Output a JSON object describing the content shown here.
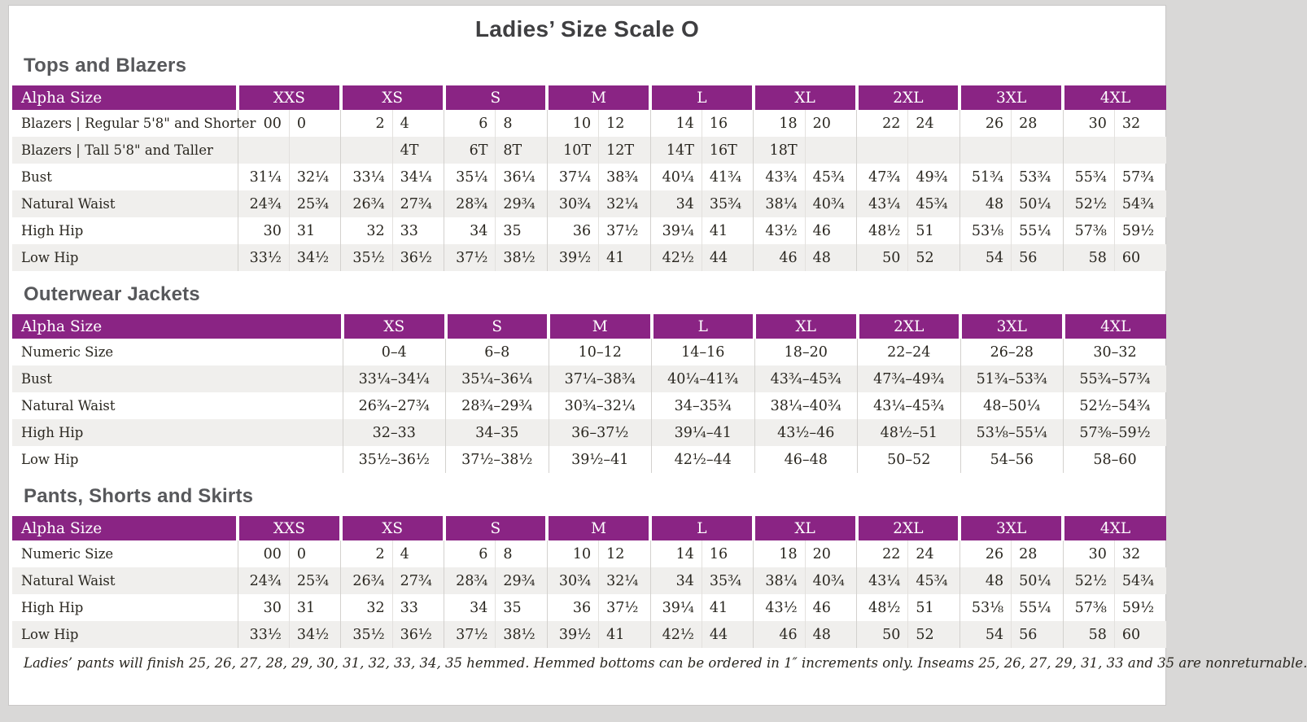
{
  "title": "Ladies’ Size Scale O",
  "colors": {
    "header_purple": "#8A2484",
    "alt_row_gray": "#F0EFED",
    "heading_gray": "#57585B",
    "title_gray": "#3F3F41"
  },
  "tables": [
    {
      "section": "Tops and Blazers",
      "type": "paired",
      "label_header": "Alpha Size",
      "sizes": [
        "XXS",
        "XS",
        "S",
        "M",
        "L",
        "XL",
        "2XL",
        "3XL",
        "4XL"
      ],
      "rows": [
        {
          "label": "Blazers  |  Regular 5'8\" and Shorter",
          "pairs": [
            [
              "00",
              "0"
            ],
            [
              "2",
              "4"
            ],
            [
              "6",
              "8"
            ],
            [
              "10",
              "12"
            ],
            [
              "14",
              "16"
            ],
            [
              "18",
              "20"
            ],
            [
              "22",
              "24"
            ],
            [
              "26",
              "28"
            ],
            [
              "30",
              "32"
            ]
          ]
        },
        {
          "label": "Blazers  |  Tall 5'8\" and Taller",
          "pairs": [
            [
              "",
              ""
            ],
            [
              "",
              "4T"
            ],
            [
              "6T",
              "8T"
            ],
            [
              "10T",
              "12T"
            ],
            [
              "14T",
              "16T"
            ],
            [
              "18T",
              ""
            ],
            [
              "",
              ""
            ],
            [
              "",
              ""
            ],
            [
              "",
              ""
            ]
          ]
        },
        {
          "label": "Bust",
          "pairs": [
            [
              "31¼",
              "32¼"
            ],
            [
              "33¼",
              "34¼"
            ],
            [
              "35¼",
              "36¼"
            ],
            [
              "37¼",
              "38¾"
            ],
            [
              "40¼",
              "41¾"
            ],
            [
              "43¾",
              "45¾"
            ],
            [
              "47¾",
              "49¾"
            ],
            [
              "51¾",
              "53¾"
            ],
            [
              "55¾",
              "57¾"
            ]
          ]
        },
        {
          "label": "Natural Waist",
          "pairs": [
            [
              "24¾",
              "25¾"
            ],
            [
              "26¾",
              "27¾"
            ],
            [
              "28¾",
              "29¾"
            ],
            [
              "30¾",
              "32¼"
            ],
            [
              "34",
              "35¾"
            ],
            [
              "38¼",
              "40¾"
            ],
            [
              "43¼",
              "45¾"
            ],
            [
              "48",
              "50¼"
            ],
            [
              "52½",
              "54¾"
            ]
          ]
        },
        {
          "label": "High Hip",
          "pairs": [
            [
              "30",
              "31"
            ],
            [
              "32",
              "33"
            ],
            [
              "34",
              "35"
            ],
            [
              "36",
              "37½"
            ],
            [
              "39¼",
              "41"
            ],
            [
              "43½",
              "46"
            ],
            [
              "48½",
              "51"
            ],
            [
              "53⅛",
              "55¼"
            ],
            [
              "57⅜",
              "59½"
            ]
          ]
        },
        {
          "label": "Low Hip",
          "pairs": [
            [
              "33½",
              "34½"
            ],
            [
              "35½",
              "36½"
            ],
            [
              "37½",
              "38½"
            ],
            [
              "39½",
              "41"
            ],
            [
              "42½",
              "44"
            ],
            [
              "46",
              "48"
            ],
            [
              "50",
              "52"
            ],
            [
              "54",
              "56"
            ],
            [
              "58",
              "60"
            ]
          ]
        }
      ]
    },
    {
      "section": "Outerwear Jackets",
      "type": "range",
      "label_header": "Alpha Size",
      "sizes": [
        "XS",
        "S",
        "M",
        "L",
        "XL",
        "2XL",
        "3XL",
        "4XL"
      ],
      "rows": [
        {
          "label": "Numeric Size",
          "values": [
            "0–4",
            "6–8",
            "10–12",
            "14–16",
            "18–20",
            "22–24",
            "26–28",
            "30–32"
          ]
        },
        {
          "label": "Bust",
          "values": [
            "33¼–34¼",
            "35¼–36¼",
            "37¼–38¾",
            "40¼–41¾",
            "43¾–45¾",
            "47¾–49¾",
            "51¾–53¾",
            "55¾–57¾"
          ]
        },
        {
          "label": "Natural Waist",
          "values": [
            "26¾–27¾",
            "28¾–29¾",
            "30¾–32¼",
            "34–35¾",
            "38¼–40¾",
            "43¼–45¾",
            "48–50¼",
            "52½–54¾"
          ]
        },
        {
          "label": "High Hip",
          "values": [
            "32–33",
            "34–35",
            "36–37½",
            "39¼–41",
            "43½–46",
            "48½–51",
            "53⅛–55¼",
            "57⅜–59½"
          ]
        },
        {
          "label": "Low Hip",
          "values": [
            "35½–36½",
            "37½–38½",
            "39½–41",
            "42½–44",
            "46–48",
            "50–52",
            "54–56",
            "58–60"
          ]
        }
      ]
    },
    {
      "section": "Pants, Shorts and Skirts",
      "type": "paired",
      "label_header": "Alpha Size",
      "sizes": [
        "XXS",
        "XS",
        "S",
        "M",
        "L",
        "XL",
        "2XL",
        "3XL",
        "4XL"
      ],
      "rows": [
        {
          "label": "Numeric Size",
          "pairs": [
            [
              "00",
              "0"
            ],
            [
              "2",
              "4"
            ],
            [
              "6",
              "8"
            ],
            [
              "10",
              "12"
            ],
            [
              "14",
              "16"
            ],
            [
              "18",
              "20"
            ],
            [
              "22",
              "24"
            ],
            [
              "26",
              "28"
            ],
            [
              "30",
              "32"
            ]
          ]
        },
        {
          "label": "Natural Waist",
          "pairs": [
            [
              "24¾",
              "25¾"
            ],
            [
              "26¾",
              "27¾"
            ],
            [
              "28¾",
              "29¾"
            ],
            [
              "30¾",
              "32¼"
            ],
            [
              "34",
              "35¾"
            ],
            [
              "38¼",
              "40¾"
            ],
            [
              "43¼",
              "45¾"
            ],
            [
              "48",
              "50¼"
            ],
            [
              "52½",
              "54¾"
            ]
          ]
        },
        {
          "label": "High Hip",
          "pairs": [
            [
              "30",
              "31"
            ],
            [
              "32",
              "33"
            ],
            [
              "34",
              "35"
            ],
            [
              "36",
              "37½"
            ],
            [
              "39¼",
              "41"
            ],
            [
              "43½",
              "46"
            ],
            [
              "48½",
              "51"
            ],
            [
              "53⅛",
              "55¼"
            ],
            [
              "57⅜",
              "59½"
            ]
          ]
        },
        {
          "label": "Low Hip",
          "pairs": [
            [
              "33½",
              "34½"
            ],
            [
              "35½",
              "36½"
            ],
            [
              "37½",
              "38½"
            ],
            [
              "39½",
              "41"
            ],
            [
              "42½",
              "44"
            ],
            [
              "46",
              "48"
            ],
            [
              "50",
              "52"
            ],
            [
              "54",
              "56"
            ],
            [
              "58",
              "60"
            ]
          ]
        }
      ]
    }
  ],
  "footnote": "Ladies’ pants will finish 25, 26, 27, 28, 29, 30, 31, 32, 33, 34, 35 hemmed. Hemmed bottoms can be ordered in 1″ increments only. Inseams 25, 26, 27, 29, 31, 33 and 35 are nonreturnable."
}
